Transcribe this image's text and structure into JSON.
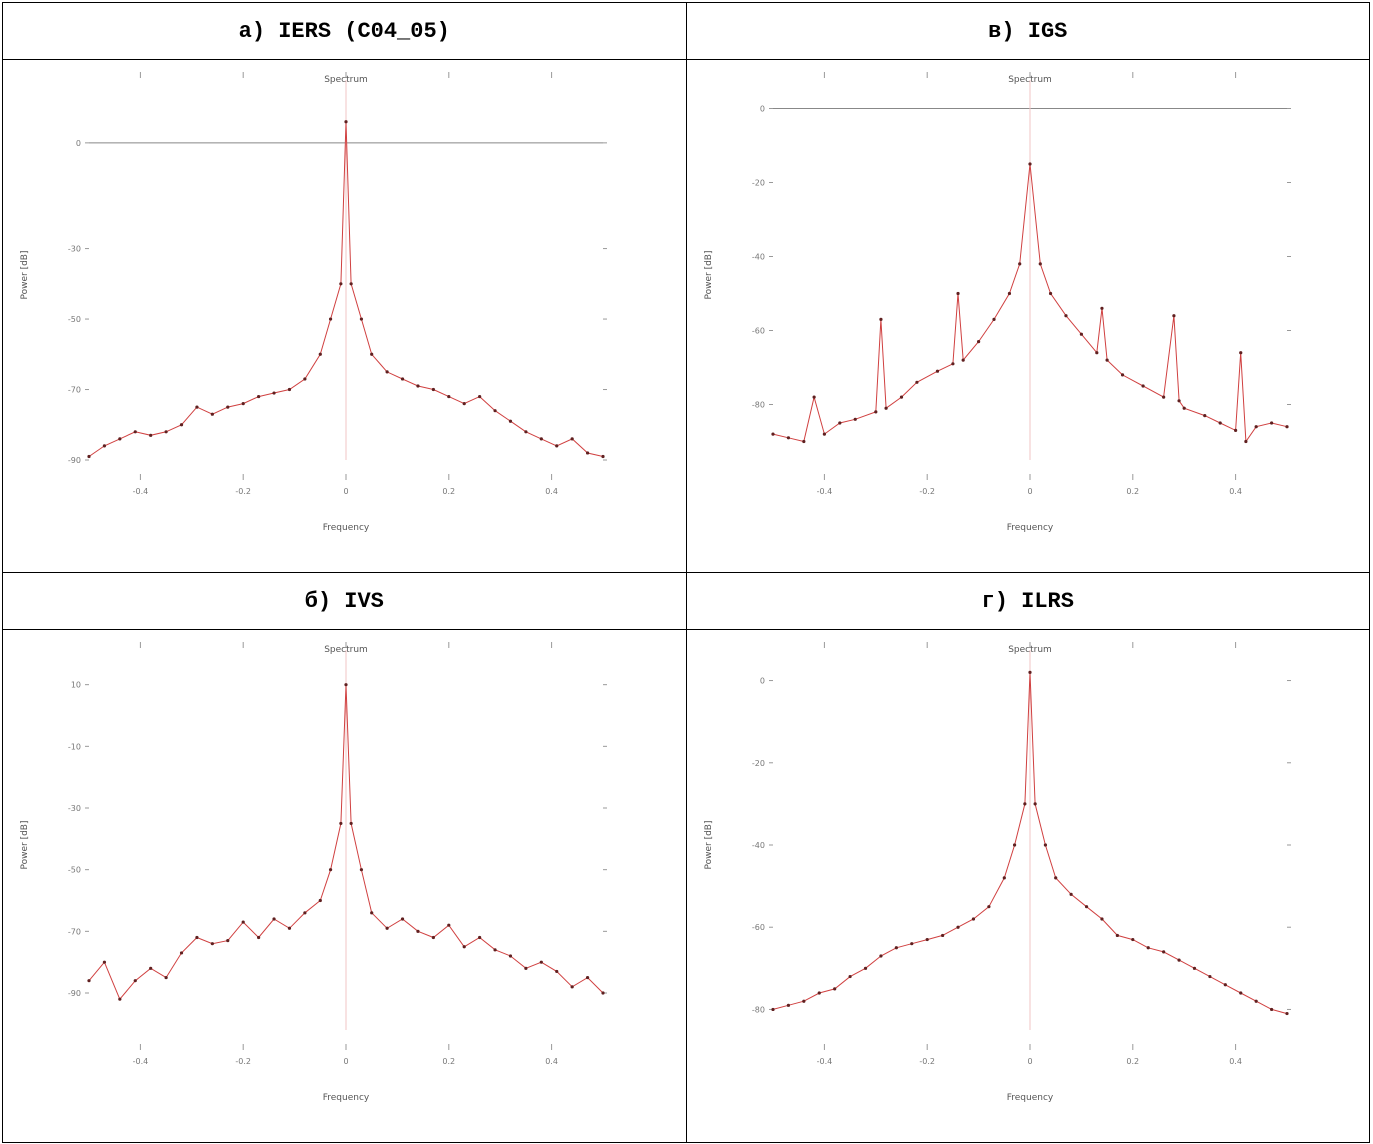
{
  "panels": [
    {
      "title": "а)  IERS (C04_05)"
    },
    {
      "title": "в)  IGS"
    },
    {
      "title": "б)  IVS"
    },
    {
      "title": "г)  ILRS"
    }
  ],
  "chart_data": [
    {
      "type": "line",
      "panel": "а)  IERS (C04_05)",
      "title": "Spectrum",
      "xlabel": "Frequency",
      "ylabel": "Power [dB]",
      "ylim": [
        -90,
        15
      ],
      "y_ticks": [
        0,
        -30,
        -50,
        -70,
        -90
      ],
      "x_tick_labels": [
        "-0.4",
        "-0.2",
        "0",
        "0.2",
        "0.4"
      ],
      "zero_line": true,
      "line_color": "#d04040",
      "x": [
        -0.5,
        -0.47,
        -0.44,
        -0.41,
        -0.38,
        -0.35,
        -0.32,
        -0.29,
        -0.26,
        -0.23,
        -0.2,
        -0.17,
        -0.14,
        -0.11,
        -0.08,
        -0.05,
        -0.03,
        -0.01,
        0,
        0.01,
        0.03,
        0.05,
        0.08,
        0.11,
        0.14,
        0.17,
        0.2,
        0.23,
        0.26,
        0.29,
        0.32,
        0.35,
        0.38,
        0.41,
        0.44,
        0.47,
        0.5
      ],
      "values": [
        -89,
        -86,
        -84,
        -82,
        -83,
        -82,
        -80,
        -75,
        -77,
        -75,
        -74,
        -72,
        -71,
        -70,
        -67,
        -60,
        -50,
        -40,
        6,
        -40,
        -50,
        -60,
        -65,
        -67,
        -69,
        -70,
        -72,
        -74,
        -72,
        -76,
        -79,
        -82,
        -84,
        -86,
        -84,
        -88,
        -89
      ]
    },
    {
      "type": "line",
      "panel": "в)  IGS",
      "title": "Spectrum",
      "xlabel": "Frequency",
      "ylabel": "Power [dB]",
      "ylim": [
        -95,
        5
      ],
      "y_ticks": [
        0,
        -20,
        -40,
        -60,
        -80
      ],
      "x_tick_labels": [
        "-0.4",
        "-0.2",
        "0",
        "0.2",
        "0.4"
      ],
      "zero_line": true,
      "line_color": "#d04040",
      "x": [
        -0.5,
        -0.47,
        -0.44,
        -0.42,
        -0.4,
        -0.37,
        -0.34,
        -0.3,
        -0.29,
        -0.28,
        -0.25,
        -0.22,
        -0.18,
        -0.15,
        -0.14,
        -0.13,
        -0.1,
        -0.07,
        -0.04,
        -0.02,
        0,
        0.02,
        0.04,
        0.07,
        0.1,
        0.13,
        0.14,
        0.15,
        0.18,
        0.22,
        0.26,
        0.28,
        0.29,
        0.3,
        0.34,
        0.37,
        0.4,
        0.41,
        0.42,
        0.44,
        0.47,
        0.5
      ],
      "values": [
        -88,
        -89,
        -90,
        -78,
        -88,
        -85,
        -84,
        -82,
        -57,
        -81,
        -78,
        -74,
        -71,
        -69,
        -50,
        -68,
        -63,
        -57,
        -50,
        -42,
        -15,
        -42,
        -50,
        -56,
        -61,
        -66,
        -54,
        -68,
        -72,
        -75,
        -78,
        -56,
        -79,
        -81,
        -83,
        -85,
        -87,
        -66,
        -90,
        -86,
        -85,
        -86
      ]
    },
    {
      "type": "line",
      "panel": "б)  IVS",
      "title": "Spectrum",
      "xlabel": "Frequency",
      "ylabel": "Power [dB]",
      "ylim": [
        -102,
        18
      ],
      "y_ticks": [
        10,
        -10,
        -30,
        -50,
        -70,
        -90
      ],
      "x_tick_labels": [
        "-0.4",
        "-0.2",
        "0",
        "0.2",
        "0.4"
      ],
      "zero_line": false,
      "line_color": "#d04040",
      "x": [
        -0.5,
        -0.47,
        -0.44,
        -0.41,
        -0.38,
        -0.35,
        -0.32,
        -0.29,
        -0.26,
        -0.23,
        -0.2,
        -0.17,
        -0.14,
        -0.11,
        -0.08,
        -0.05,
        -0.03,
        -0.01,
        0,
        0.01,
        0.03,
        0.05,
        0.08,
        0.11,
        0.14,
        0.17,
        0.2,
        0.23,
        0.26,
        0.29,
        0.32,
        0.35,
        0.38,
        0.41,
        0.44,
        0.47,
        0.5
      ],
      "values": [
        -86,
        -80,
        -92,
        -86,
        -82,
        -85,
        -77,
        -72,
        -74,
        -73,
        -67,
        -72,
        -66,
        -69,
        -64,
        -60,
        -50,
        -35,
        10,
        -35,
        -50,
        -64,
        -69,
        -66,
        -70,
        -72,
        -68,
        -75,
        -72,
        -76,
        -78,
        -82,
        -80,
        -83,
        -88,
        -85,
        -90
      ]
    },
    {
      "type": "line",
      "panel": "г)  ILRS",
      "title": "Spectrum",
      "xlabel": "Frequency",
      "ylabel": "Power [dB]",
      "ylim": [
        -85,
        5
      ],
      "y_ticks": [
        0,
        -20,
        -40,
        -60,
        -80
      ],
      "x_tick_labels": [
        "-0.4",
        "-0.2",
        "0",
        "0.2",
        "0.4"
      ],
      "zero_line": false,
      "line_color": "#d04040",
      "x": [
        -0.5,
        -0.47,
        -0.44,
        -0.41,
        -0.38,
        -0.35,
        -0.32,
        -0.29,
        -0.26,
        -0.23,
        -0.2,
        -0.17,
        -0.14,
        -0.11,
        -0.08,
        -0.05,
        -0.03,
        -0.01,
        0,
        0.01,
        0.03,
        0.05,
        0.08,
        0.11,
        0.14,
        0.17,
        0.2,
        0.23,
        0.26,
        0.29,
        0.32,
        0.35,
        0.38,
        0.41,
        0.44,
        0.47,
        0.5
      ],
      "values": [
        -80,
        -79,
        -78,
        -76,
        -75,
        -72,
        -70,
        -67,
        -65,
        -64,
        -63,
        -62,
        -60,
        -58,
        -55,
        -48,
        -40,
        -30,
        2,
        -30,
        -40,
        -48,
        -52,
        -55,
        -58,
        -62,
        -63,
        -65,
        -66,
        -68,
        -70,
        -72,
        -74,
        -76,
        -78,
        -80,
        -81
      ]
    }
  ]
}
